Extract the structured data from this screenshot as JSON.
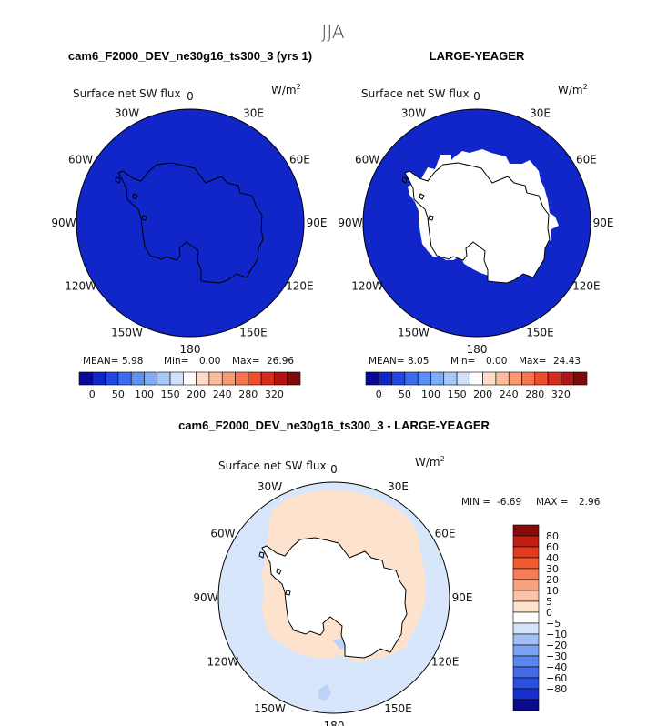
{
  "figure": {
    "suptitle": "JJA",
    "colors": {
      "polar_fill": "#1026c8",
      "land": "#ffffff",
      "coast": "#000000",
      "diff_ocean": "#d7e6fa",
      "diff_positive": "#fde3cd",
      "diff_negative_spot": "#bcd3f5"
    }
  },
  "chart_data": [
    {
      "type": "heatmap",
      "projection": "south-polar-stereographic",
      "title": "cam6_F2000_DEV_ne30g16_ts300_3 (yrs 1)",
      "variable": "Surface net SW flux",
      "units": "W/m",
      "units_exp": "2",
      "lon_labels": [
        "0",
        "30E",
        "60E",
        "90E",
        "120E",
        "150E",
        "180",
        "150W",
        "120W",
        "90W",
        "60W",
        "30W"
      ],
      "stats": {
        "mean_label": "MEAN=",
        "mean": "5.98",
        "min_label": "Min=",
        "min": "0.00",
        "max_label": "Max=",
        "max": "26.96"
      },
      "colorbar": {
        "orientation": "horizontal",
        "colors": [
          "#0a0a96",
          "#1026c8",
          "#2047e0",
          "#3a6cf0",
          "#5b8ff5",
          "#80acf5",
          "#a6c8f8",
          "#cfe0fb",
          "#ffffff",
          "#fddbc6",
          "#fcbb9a",
          "#fa9a72",
          "#f6754e",
          "#ef4d2c",
          "#d82c1a",
          "#b01410",
          "#7f0a0a"
        ],
        "tick_labels": [
          "0",
          "50",
          "100",
          "150",
          "200",
          "240",
          "280",
          "320"
        ]
      },
      "sea_ice_fill": false
    },
    {
      "type": "heatmap",
      "projection": "south-polar-stereographic",
      "title": "LARGE-YEAGER",
      "variable": "Surface net SW flux",
      "units": "W/m",
      "units_exp": "2",
      "lon_labels": [
        "0",
        "30E",
        "60E",
        "90E",
        "120E",
        "150E",
        "180",
        "150W",
        "120W",
        "90W",
        "60W",
        "30W"
      ],
      "stats": {
        "mean_label": "MEAN=",
        "mean": "8.05",
        "min_label": "Min=",
        "min": "0.00",
        "max_label": "Max=",
        "max": "24.43"
      },
      "colorbar": {
        "orientation": "horizontal",
        "colors": [
          "#0a0a96",
          "#1026c8",
          "#2047e0",
          "#3a6cf0",
          "#5b8ff5",
          "#80acf5",
          "#a6c8f8",
          "#cfe0fb",
          "#ffffff",
          "#fddbc6",
          "#fcbb9a",
          "#fa9a72",
          "#f6754e",
          "#ef4d2c",
          "#d82c1a",
          "#b01410",
          "#7f0a0a"
        ],
        "tick_labels": [
          "0",
          "50",
          "100",
          "150",
          "200",
          "240",
          "280",
          "320"
        ]
      },
      "sea_ice_fill": true
    },
    {
      "type": "heatmap",
      "projection": "south-polar-stereographic",
      "title": "cam6_F2000_DEV_ne30g16_ts300_3 - LARGE-YEAGER",
      "variable": "Surface net SW flux",
      "units": "W/m",
      "units_exp": "2",
      "lon_labels": [
        "0",
        "30E",
        "60E",
        "90E",
        "120E",
        "150E",
        "180",
        "150W",
        "120W",
        "90W",
        "60W",
        "30W"
      ],
      "stats": {
        "min_label": "MIN =",
        "min": "-6.69",
        "max_label": "MAX =",
        "max": "2.96"
      },
      "colorbar": {
        "orientation": "vertical",
        "colors": [
          "#0a0a8c",
          "#1830c8",
          "#2a50e0",
          "#3f6ae8",
          "#5a86ee",
          "#7aa2f2",
          "#a2c0f6",
          "#d4e4fa",
          "#ffffff",
          "#fde3cd",
          "#fcc3a6",
          "#fba07c",
          "#f77c55",
          "#f25a32",
          "#e23a1c",
          "#c21e10",
          "#8a0a0a"
        ],
        "tick_labels": [
          "80",
          "60",
          "40",
          "30",
          "20",
          "10",
          "5",
          "0",
          "−5",
          "−10",
          "−20",
          "−30",
          "−40",
          "−60",
          "−80"
        ]
      }
    }
  ]
}
